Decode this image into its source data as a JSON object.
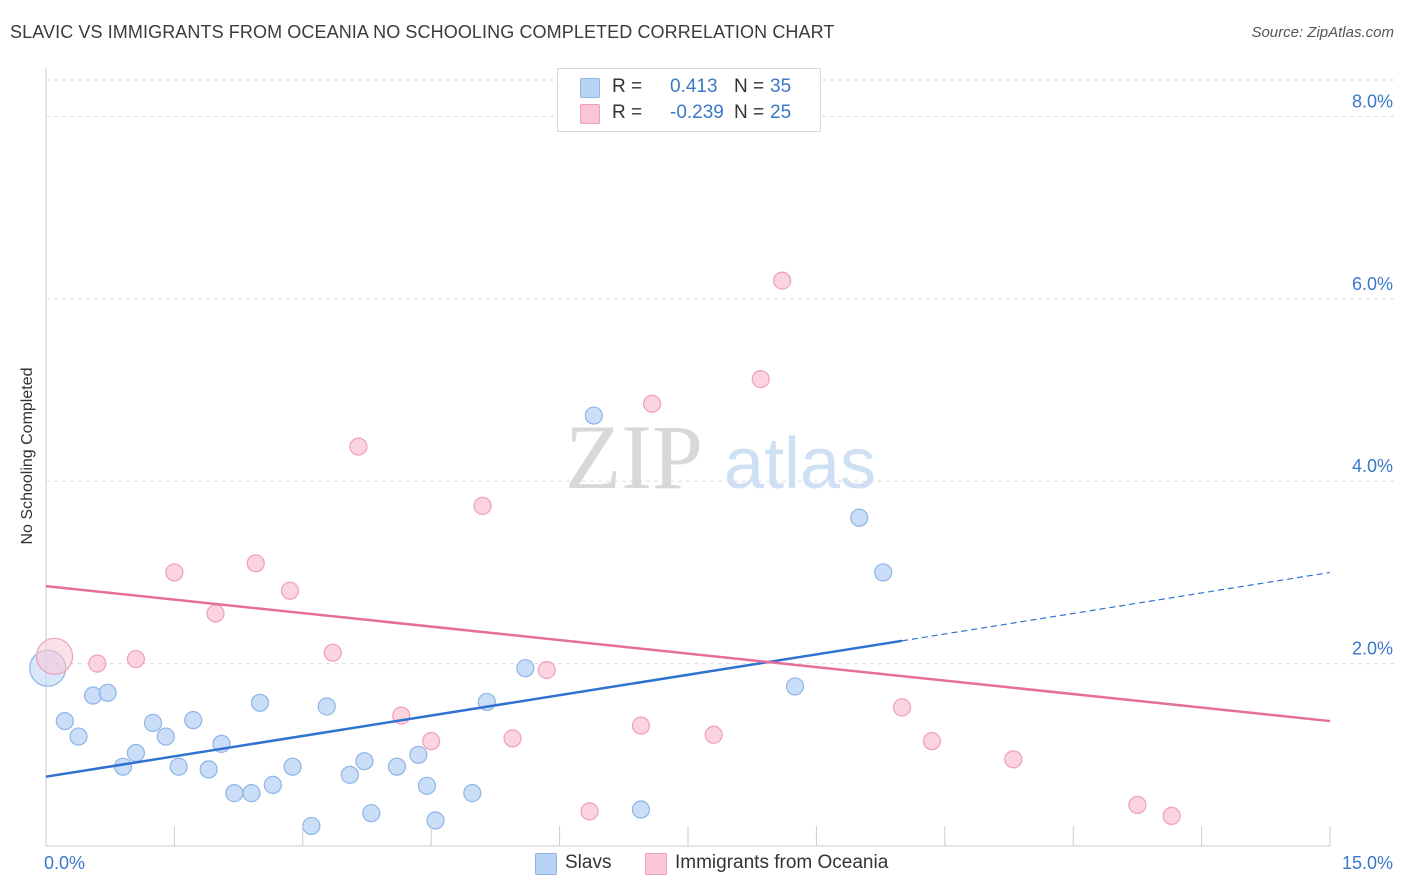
{
  "title": "SLAVIC VS IMMIGRANTS FROM OCEANIA NO SCHOOLING COMPLETED CORRELATION CHART",
  "source": "Source: ZipAtlas.com",
  "watermark": {
    "zip": "ZIP",
    "atlas": "atlas"
  },
  "colors": {
    "slavs_fill": "#b9d3f5",
    "slavs_stroke": "#8fb4e6",
    "slavs_line": "#2f72d0",
    "oceania_fill": "#f9c6d5",
    "oceania_stroke": "#ef9fb8",
    "oceania_line": "#e56f98",
    "tick": "#3a78c9",
    "grid": "#dcdcdc"
  },
  "legend": {
    "rows": [
      {
        "r_label": "R =",
        "r_value": "0.413",
        "n_label": "N =",
        "n_value": "35"
      },
      {
        "r_label": "R =",
        "r_value": "-0.239",
        "n_label": "N =",
        "n_value": "25"
      }
    ]
  },
  "bottom_legend": [
    "Slavs",
    "Immigrants from Oceania"
  ],
  "chart_data": {
    "type": "scatter",
    "title": "SLAVIC VS IMMIGRANTS FROM OCEANIA NO SCHOOLING COMPLETED CORRELATION CHART",
    "xlabel": "",
    "ylabel": "No Schooling Completed",
    "xlim": [
      0,
      15
    ],
    "ylim": [
      0,
      8.4
    ],
    "x_tick_labels": [
      "0.0%",
      "15.0%"
    ],
    "y_ticks": [
      2,
      4,
      6,
      8
    ],
    "y_tick_labels": [
      "2.0%",
      "4.0%",
      "6.0%",
      "8.0%"
    ],
    "grid": true,
    "legend_position": "top-center",
    "series": [
      {
        "name": "Slavs",
        "r": 0.413,
        "n": 35,
        "points": [
          [
            0.02,
            1.95,
            "large"
          ],
          [
            0.22,
            1.37
          ],
          [
            0.38,
            1.2
          ],
          [
            0.55,
            1.65
          ],
          [
            0.72,
            1.68
          ],
          [
            0.9,
            0.87
          ],
          [
            1.05,
            1.02
          ],
          [
            1.25,
            1.35
          ],
          [
            1.4,
            1.2
          ],
          [
            1.55,
            0.87
          ],
          [
            1.72,
            1.38
          ],
          [
            1.9,
            0.84
          ],
          [
            2.05,
            1.12
          ],
          [
            2.2,
            0.58
          ],
          [
            2.4,
            0.58
          ],
          [
            2.5,
            1.57
          ],
          [
            2.65,
            0.67
          ],
          [
            2.88,
            0.87
          ],
          [
            3.1,
            0.22
          ],
          [
            3.28,
            1.53
          ],
          [
            3.55,
            0.78
          ],
          [
            3.72,
            0.93
          ],
          [
            3.8,
            0.36
          ],
          [
            4.1,
            0.87
          ],
          [
            4.35,
            1.0
          ],
          [
            4.45,
            0.66
          ],
          [
            4.55,
            0.28
          ],
          [
            4.98,
            0.58
          ],
          [
            5.15,
            1.58
          ],
          [
            5.6,
            1.95
          ],
          [
            6.4,
            4.72
          ],
          [
            6.95,
            0.4
          ],
          [
            8.75,
            1.75
          ],
          [
            9.5,
            3.6
          ],
          [
            9.78,
            3.0
          ]
        ],
        "trend": {
          "x0": 0.0,
          "y0": 0.76,
          "x1": 10.0,
          "y1": 2.25,
          "dash_to_x": 15.0,
          "dash_to_y": 3.0
        }
      },
      {
        "name": "Immigrants from Oceania",
        "r": -0.239,
        "n": 25,
        "points": [
          [
            0.1,
            2.08,
            "large"
          ],
          [
            0.6,
            2.0
          ],
          [
            1.05,
            2.05
          ],
          [
            1.5,
            3.0
          ],
          [
            1.98,
            2.55
          ],
          [
            2.45,
            3.1
          ],
          [
            2.85,
            2.8
          ],
          [
            3.35,
            2.12
          ],
          [
            3.65,
            4.38
          ],
          [
            4.15,
            1.43
          ],
          [
            4.5,
            1.15
          ],
          [
            5.1,
            3.73
          ],
          [
            5.45,
            1.18
          ],
          [
            5.85,
            1.93
          ],
          [
            6.35,
            0.38
          ],
          [
            6.95,
            1.32
          ],
          [
            7.08,
            4.85
          ],
          [
            7.8,
            1.22
          ],
          [
            8.35,
            5.12
          ],
          [
            8.6,
            6.2
          ],
          [
            10.0,
            1.52
          ],
          [
            10.35,
            1.15
          ],
          [
            11.3,
            0.95
          ],
          [
            12.75,
            0.45
          ],
          [
            13.15,
            0.33
          ]
        ],
        "trend": {
          "x0": 0.0,
          "y0": 2.85,
          "x1": 15.0,
          "y1": 1.37
        }
      }
    ]
  }
}
